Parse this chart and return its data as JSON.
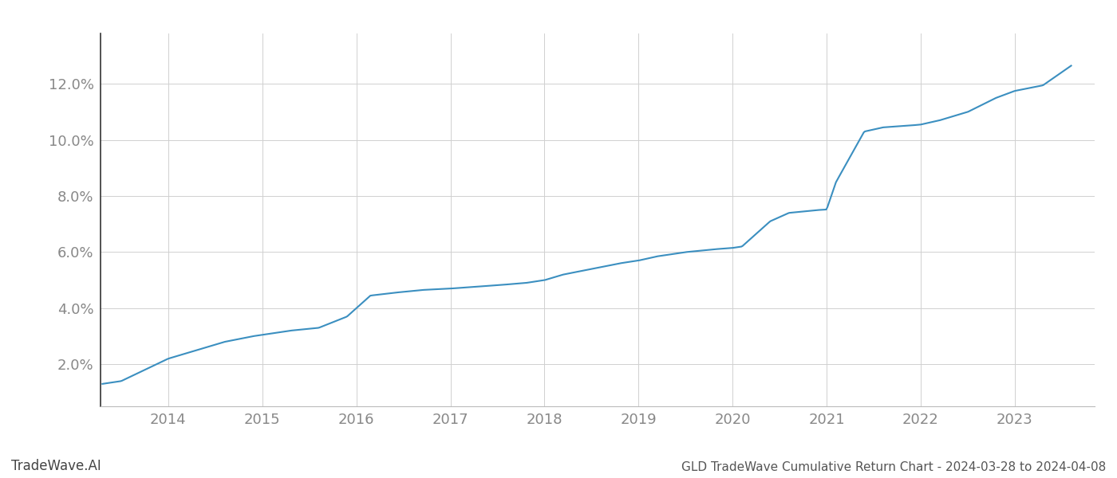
{
  "title": "GLD TradeWave Cumulative Return Chart - 2024-03-28 to 2024-04-08",
  "watermark": "TradeWave.AI",
  "line_color": "#3b8fc0",
  "background_color": "#ffffff",
  "grid_color": "#d0d0d0",
  "x_years": [
    2014,
    2015,
    2016,
    2017,
    2018,
    2019,
    2020,
    2021,
    2022,
    2023
  ],
  "key_x": [
    2013.3,
    2013.5,
    2014.0,
    2014.3,
    2014.6,
    2014.9,
    2015.1,
    2015.3,
    2015.6,
    2015.9,
    2016.0,
    2016.15,
    2016.4,
    2016.7,
    2017.0,
    2017.2,
    2017.5,
    2017.8,
    2018.0,
    2018.2,
    2018.5,
    2018.8,
    2019.0,
    2019.2,
    2019.5,
    2019.8,
    2020.0,
    2020.1,
    2020.4,
    2020.6,
    2020.9,
    2021.0,
    2021.1,
    2021.4,
    2021.6,
    2021.9,
    2022.0,
    2022.2,
    2022.5,
    2022.8,
    2023.0,
    2023.3,
    2023.6
  ],
  "key_y": [
    1.3,
    1.4,
    2.2,
    2.5,
    2.8,
    3.0,
    3.1,
    3.2,
    3.3,
    3.7,
    4.0,
    4.45,
    4.55,
    4.65,
    4.7,
    4.75,
    4.82,
    4.9,
    5.0,
    5.2,
    5.4,
    5.6,
    5.7,
    5.85,
    6.0,
    6.1,
    6.15,
    6.2,
    7.1,
    7.4,
    7.5,
    7.52,
    8.5,
    10.3,
    10.45,
    10.52,
    10.55,
    10.7,
    11.0,
    11.5,
    11.75,
    11.95,
    12.65
  ],
  "ylim": [
    0.5,
    13.8
  ],
  "xlim": [
    2013.28,
    2023.85
  ],
  "yticks": [
    2.0,
    4.0,
    6.0,
    8.0,
    10.0,
    12.0
  ],
  "title_fontsize": 11,
  "tick_fontsize": 13,
  "watermark_fontsize": 12,
  "title_color": "#555555",
  "tick_color": "#888888",
  "watermark_color": "#444444"
}
